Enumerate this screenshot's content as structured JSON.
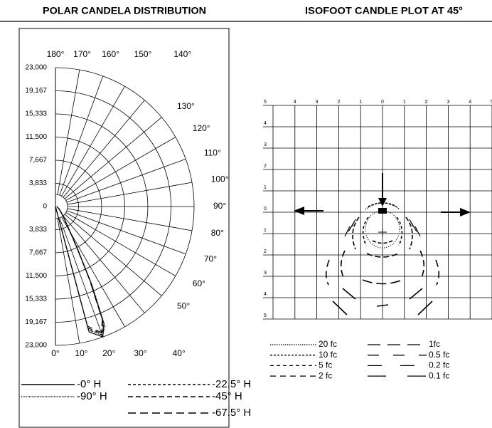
{
  "chart_data": [
    {
      "type": "polar",
      "title": "POLAR CANDELA DISTRIBUTION",
      "rlim": [
        0,
        23000
      ],
      "rticks": [
        {
          "value": 23000,
          "label": "23,000"
        },
        {
          "value": 19167,
          "label": "19,167"
        },
        {
          "value": 15333,
          "label": "15,333"
        },
        {
          "value": 11500,
          "label": "11,500"
        },
        {
          "value": 7667,
          "label": "7,667"
        },
        {
          "value": 3833,
          "label": "3,833"
        },
        0
      ],
      "angleticks": [
        {
          "value": 0,
          "label": "0°"
        },
        {
          "value": 10,
          "label": "10°"
        },
        {
          "value": 20,
          "label": "20°"
        },
        {
          "value": 30,
          "label": "30°"
        },
        {
          "value": 40,
          "label": "40°"
        },
        {
          "value": 50,
          "label": "50°"
        },
        {
          "value": 60,
          "label": "60°"
        },
        {
          "value": 70,
          "label": "70°"
        },
        {
          "value": 80,
          "label": "80°"
        },
        {
          "value": 90,
          "label": "90°"
        },
        {
          "value": 100,
          "label": "100°"
        },
        {
          "value": 110,
          "label": "110°"
        },
        {
          "value": 120,
          "label": "120°"
        },
        {
          "value": 130,
          "label": "130°"
        },
        {
          "value": 140,
          "label": "140°"
        },
        {
          "value": 150,
          "label": "150°"
        },
        {
          "value": 160,
          "label": "160°"
        },
        {
          "value": 170,
          "label": "170°"
        },
        {
          "value": 180,
          "label": "180°"
        }
      ],
      "x": [
        10,
        15,
        20,
        22.5,
        25,
        27.5,
        30,
        35,
        40,
        50,
        60,
        70,
        80,
        90
      ],
      "series": [
        {
          "name": "-0° H",
          "color": "#000000",
          "values": [
            0,
            21500,
            23000,
            21000,
            14000,
            8000,
            5000,
            2800,
            1800,
            1000,
            600,
            400,
            300,
            200
          ]
        },
        {
          "name": "-90° H",
          "color": "#000000",
          "values": [
            0,
            21000,
            22800,
            21500,
            14500,
            8300,
            5100,
            2900,
            1900,
            1100,
            650,
            420,
            300,
            220
          ]
        },
        {
          "name": "-22.5° H",
          "color": "#000000",
          "values": [
            0,
            21200,
            22600,
            20800,
            13800,
            7900,
            4900,
            2700,
            1750,
            950,
            580,
            380,
            280,
            190
          ]
        },
        {
          "name": "-45° H",
          "color": "#000000",
          "values": [
            0,
            20800,
            22400,
            20500,
            13500,
            7700,
            4800,
            2650,
            1700,
            930,
            560,
            370,
            270,
            180
          ]
        },
        {
          "name": "-67.5° H",
          "color": "#000000",
          "values": [
            0,
            20500,
            22200,
            20300,
            13300,
            7600,
            4700,
            2600,
            1650,
            900,
            550,
            360,
            260,
            170
          ]
        }
      ]
    },
    {
      "type": "isofootcandle",
      "title": "ISOFOOT CANDLE PLOT AT 45°",
      "xlim": [
        -5,
        5
      ],
      "xticks": [
        {
          "value": -4,
          "label": "4"
        },
        {
          "value": -3,
          "label": "3"
        },
        {
          "value": -2,
          "label": "2"
        },
        {
          "value": -1,
          "label": "1"
        },
        0,
        1,
        2,
        3,
        4,
        5
      ],
      "ylim": [
        -5,
        5
      ],
      "yticks": [
        5,
        4,
        3,
        2,
        1,
        0,
        {
          "value": -1,
          "label": "1"
        },
        {
          "value": -2,
          "label": "2"
        },
        {
          "value": -3,
          "label": "3"
        },
        {
          "value": -4,
          "label": "4"
        },
        {
          "value": -5,
          "label": "5"
        }
      ],
      "legend": [
        "20 fc",
        "10 fc",
        "5 fc",
        "2 fc",
        "1fc",
        "0.5 fc",
        "0.2 fc",
        "0.1 fc"
      ]
    }
  ]
}
